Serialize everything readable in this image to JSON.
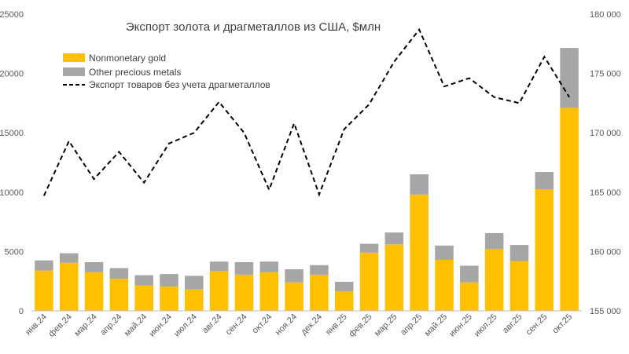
{
  "chart_data": {
    "type": "bar",
    "title": "Экспорт золота и драгметаллов из США, $млн",
    "categories": [
      "янв.24",
      "фев.24",
      "мар.24",
      "апр.24",
      "май.24",
      "июн.24",
      "июл.24",
      "авг.24",
      "сен.24",
      "окт.24",
      "ноя.24",
      "дек.24",
      "янв.25",
      "фев.25",
      "мар.25",
      "апр.25",
      "май.25",
      "июн.25",
      "июл.25",
      "авг.25",
      "сен.25",
      "окт.25"
    ],
    "stacked": true,
    "series": [
      {
        "name": "Nonmonetary gold",
        "axis": "left",
        "kind": "bar",
        "color": "#FFC000",
        "values": [
          3400,
          4050,
          3250,
          2700,
          2150,
          2050,
          1800,
          3350,
          3050,
          3250,
          2400,
          3050,
          1650,
          4900,
          5600,
          9800,
          4300,
          2400,
          5200,
          4200,
          10250,
          17100
        ]
      },
      {
        "name": "Other precious metals",
        "axis": "left",
        "kind": "bar",
        "color": "#A6A6A6",
        "values": [
          850,
          800,
          850,
          900,
          850,
          1050,
          1150,
          800,
          1050,
          900,
          1100,
          800,
          800,
          750,
          1000,
          1700,
          1200,
          1400,
          1350,
          1350,
          1450,
          5050
        ]
      },
      {
        "name": "Экспорт товаров без учета драгметаллов",
        "axis": "right",
        "kind": "line",
        "style": "dashed",
        "color": "#000000",
        "values": [
          164700,
          169300,
          166100,
          168400,
          165800,
          169100,
          170000,
          172600,
          170000,
          165200,
          170800,
          164800,
          170300,
          172400,
          176000,
          178700,
          173900,
          174600,
          173000,
          172500,
          176400,
          173000
        ]
      }
    ],
    "y_left": {
      "min": 0,
      "max": 25000,
      "ticks": [
        "0",
        "5000",
        "10000",
        "15000",
        "20000",
        "25000"
      ]
    },
    "y_right": {
      "min": 155000,
      "max": 180000,
      "ticks": [
        "155 000",
        "160 000",
        "165 000",
        "170 000",
        "175 000",
        "180 000"
      ]
    },
    "legend_position": "top-left",
    "grid": false
  }
}
